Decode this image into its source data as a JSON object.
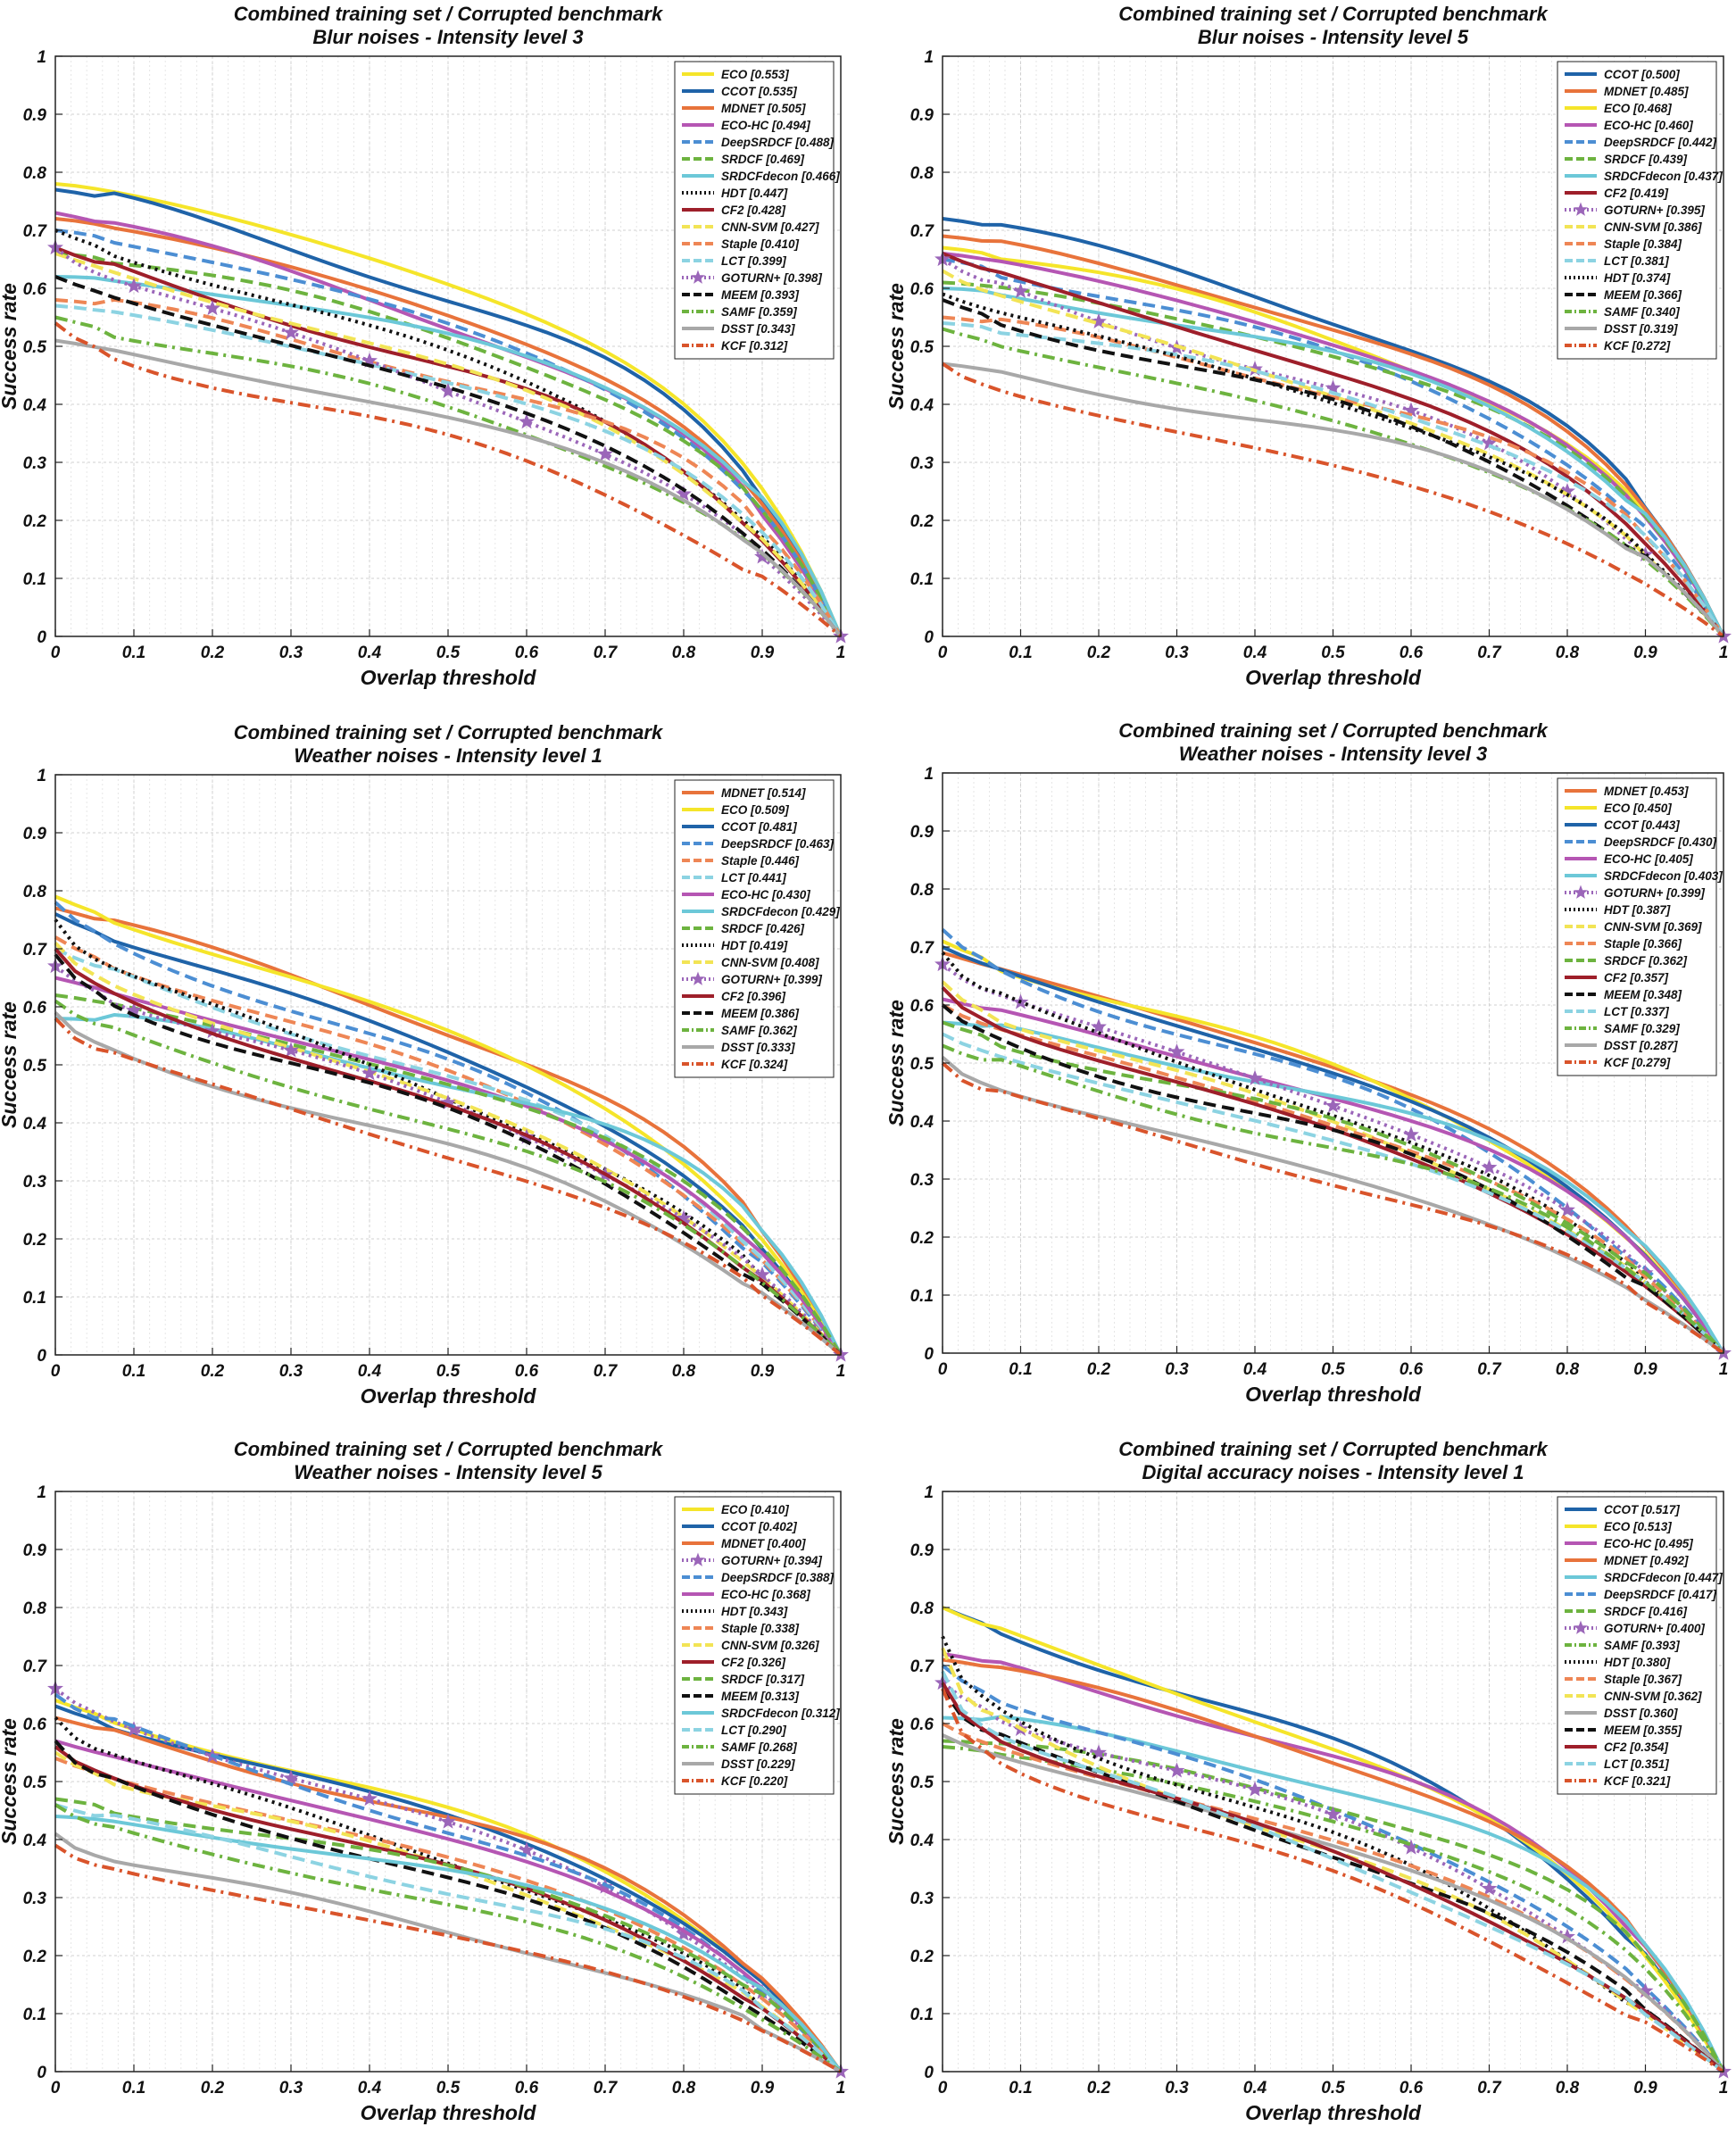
{
  "chart_data": [
    {
      "type": "line",
      "title": "Combined training set / Corrupted benchmark",
      "subtitle": "Blur noises - Intensity level 3",
      "xlabel": "Overlap threshold",
      "ylabel": "Success rate",
      "xlim": [
        0,
        1
      ],
      "ylim": [
        0,
        1
      ],
      "xticks": [
        "0",
        "0.1",
        "0.2",
        "0.3",
        "0.4",
        "0.5",
        "0.6",
        "0.7",
        "0.8",
        "0.9",
        "1"
      ],
      "yticks": [
        "0",
        "0.1",
        "0.2",
        "0.3",
        "0.4",
        "0.5",
        "0.6",
        "0.7",
        "0.8",
        "0.9",
        "1"
      ],
      "grid": true,
      "legend_position": "top-right",
      "series": [
        {
          "name": "ECO [0.553]",
          "auc": 0.553,
          "y0": 0.78
        },
        {
          "name": "CCOT [0.535]",
          "auc": 0.535,
          "y0": 0.77
        },
        {
          "name": "MDNET [0.505]",
          "auc": 0.505,
          "y0": 0.72
        },
        {
          "name": "ECO-HC [0.494]",
          "auc": 0.494,
          "y0": 0.73
        },
        {
          "name": "DeepSRDCF [0.488]",
          "auc": 0.488,
          "y0": 0.7
        },
        {
          "name": "SRDCF [0.469]",
          "auc": 0.469,
          "y0": 0.66
        },
        {
          "name": "SRDCFdecon [0.466]",
          "auc": 0.466,
          "y0": 0.62
        },
        {
          "name": "HDT [0.447]",
          "auc": 0.447,
          "y0": 0.7
        },
        {
          "name": "CF2 [0.428]",
          "auc": 0.428,
          "y0": 0.67
        },
        {
          "name": "CNN-SVM [0.427]",
          "auc": 0.427,
          "y0": 0.66
        },
        {
          "name": "Staple [0.410]",
          "auc": 0.41,
          "y0": 0.58
        },
        {
          "name": "LCT [0.399]",
          "auc": 0.399,
          "y0": 0.57
        },
        {
          "name": "GOTURN+ [0.398]",
          "auc": 0.398,
          "y0": 0.67
        },
        {
          "name": "MEEM [0.393]",
          "auc": 0.393,
          "y0": 0.62
        },
        {
          "name": "SAMF [0.359]",
          "auc": 0.359,
          "y0": 0.55
        },
        {
          "name": "DSST [0.343]",
          "auc": 0.343,
          "y0": 0.51
        },
        {
          "name": "KCF [0.312]",
          "auc": 0.312,
          "y0": 0.54
        }
      ]
    },
    {
      "type": "line",
      "title": "Combined training set / Corrupted benchmark",
      "subtitle": "Blur noises - Intensity level 5",
      "xlabel": "Overlap threshold",
      "ylabel": "Success rate",
      "xlim": [
        0,
        1
      ],
      "ylim": [
        0,
        1
      ],
      "xticks": [
        "0",
        "0.1",
        "0.2",
        "0.3",
        "0.4",
        "0.5",
        "0.6",
        "0.7",
        "0.8",
        "0.9",
        "1"
      ],
      "yticks": [
        "0",
        "0.1",
        "0.2",
        "0.3",
        "0.4",
        "0.5",
        "0.6",
        "0.7",
        "0.8",
        "0.9",
        "1"
      ],
      "grid": true,
      "legend_position": "top-right",
      "series": [
        {
          "name": "CCOT [0.500]",
          "auc": 0.5,
          "y0": 0.72
        },
        {
          "name": "MDNET [0.485]",
          "auc": 0.485,
          "y0": 0.69
        },
        {
          "name": "ECO [0.468]",
          "auc": 0.468,
          "y0": 0.67
        },
        {
          "name": "ECO-HC [0.460]",
          "auc": 0.46,
          "y0": 0.66
        },
        {
          "name": "DeepSRDCF [0.442]",
          "auc": 0.442,
          "y0": 0.65
        },
        {
          "name": "SRDCF [0.439]",
          "auc": 0.439,
          "y0": 0.61
        },
        {
          "name": "SRDCFdecon [0.437]",
          "auc": 0.437,
          "y0": 0.6
        },
        {
          "name": "CF2 [0.419]",
          "auc": 0.419,
          "y0": 0.66
        },
        {
          "name": "GOTURN+ [0.395]",
          "auc": 0.395,
          "y0": 0.65
        },
        {
          "name": "CNN-SVM [0.386]",
          "auc": 0.386,
          "y0": 0.63
        },
        {
          "name": "Staple [0.384]",
          "auc": 0.384,
          "y0": 0.55
        },
        {
          "name": "LCT [0.381]",
          "auc": 0.381,
          "y0": 0.54
        },
        {
          "name": "HDT [0.374]",
          "auc": 0.374,
          "y0": 0.59
        },
        {
          "name": "MEEM [0.366]",
          "auc": 0.366,
          "y0": 0.58
        },
        {
          "name": "SAMF [0.340]",
          "auc": 0.34,
          "y0": 0.53
        },
        {
          "name": "DSST [0.319]",
          "auc": 0.319,
          "y0": 0.47
        },
        {
          "name": "KCF [0.272]",
          "auc": 0.272,
          "y0": 0.47
        }
      ]
    },
    {
      "type": "line",
      "title": "Combined training set / Corrupted benchmark",
      "subtitle": "Weather noises - Intensity level 1",
      "xlabel": "Overlap threshold",
      "ylabel": "Success rate",
      "xlim": [
        0,
        1
      ],
      "ylim": [
        0,
        1
      ],
      "xticks": [
        "0",
        "0.1",
        "0.2",
        "0.3",
        "0.4",
        "0.5",
        "0.6",
        "0.7",
        "0.8",
        "0.9",
        "1"
      ],
      "yticks": [
        "0",
        "0.1",
        "0.2",
        "0.3",
        "0.4",
        "0.5",
        "0.6",
        "0.7",
        "0.8",
        "0.9",
        "1"
      ],
      "grid": true,
      "legend_position": "top-right",
      "series": [
        {
          "name": "MDNET [0.514]",
          "auc": 0.514,
          "y0": 0.77
        },
        {
          "name": "ECO [0.509]",
          "auc": 0.509,
          "y0": 0.79
        },
        {
          "name": "CCOT [0.481]",
          "auc": 0.481,
          "y0": 0.76
        },
        {
          "name": "DeepSRDCF [0.463]",
          "auc": 0.463,
          "y0": 0.78
        },
        {
          "name": "Staple [0.446]",
          "auc": 0.446,
          "y0": 0.72
        },
        {
          "name": "LCT [0.441]",
          "auc": 0.441,
          "y0": 0.7
        },
        {
          "name": "ECO-HC [0.430]",
          "auc": 0.43,
          "y0": 0.65
        },
        {
          "name": "SRDCFdecon [0.429]",
          "auc": 0.429,
          "y0": 0.58
        },
        {
          "name": "SRDCF [0.426]",
          "auc": 0.426,
          "y0": 0.62
        },
        {
          "name": "HDT [0.419]",
          "auc": 0.419,
          "y0": 0.75
        },
        {
          "name": "CNN-SVM [0.408]",
          "auc": 0.408,
          "y0": 0.71
        },
        {
          "name": "GOTURN+ [0.399]",
          "auc": 0.399,
          "y0": 0.67
        },
        {
          "name": "CF2 [0.396]",
          "auc": 0.396,
          "y0": 0.7
        },
        {
          "name": "MEEM [0.386]",
          "auc": 0.386,
          "y0": 0.69
        },
        {
          "name": "SAMF [0.362]",
          "auc": 0.362,
          "y0": 0.61
        },
        {
          "name": "DSST [0.333]",
          "auc": 0.333,
          "y0": 0.59
        },
        {
          "name": "KCF [0.324]",
          "auc": 0.324,
          "y0": 0.58
        }
      ]
    },
    {
      "type": "line",
      "title": "Combined training set / Corrupted benchmark",
      "subtitle": "Weather noises - Intensity level 3",
      "xlabel": "Overlap threshold",
      "ylabel": "Success rate",
      "xlim": [
        0,
        1
      ],
      "ylim": [
        0,
        1
      ],
      "xticks": [
        "0",
        "0.1",
        "0.2",
        "0.3",
        "0.4",
        "0.5",
        "0.6",
        "0.7",
        "0.8",
        "0.9",
        "1"
      ],
      "yticks": [
        "0",
        "0.1",
        "0.2",
        "0.3",
        "0.4",
        "0.5",
        "0.6",
        "0.7",
        "0.8",
        "0.9",
        "1"
      ],
      "grid": true,
      "legend_position": "top-right",
      "series": [
        {
          "name": "MDNET [0.453]",
          "auc": 0.453,
          "y0": 0.69
        },
        {
          "name": "ECO [0.450]",
          "auc": 0.45,
          "y0": 0.71
        },
        {
          "name": "CCOT [0.443]",
          "auc": 0.443,
          "y0": 0.7
        },
        {
          "name": "DeepSRDCF [0.430]",
          "auc": 0.43,
          "y0": 0.73
        },
        {
          "name": "ECO-HC [0.405]",
          "auc": 0.405,
          "y0": 0.61
        },
        {
          "name": "SRDCFdecon [0.403]",
          "auc": 0.403,
          "y0": 0.57
        },
        {
          "name": "GOTURN+ [0.399]",
          "auc": 0.399,
          "y0": 0.67
        },
        {
          "name": "HDT [0.387]",
          "auc": 0.387,
          "y0": 0.69
        },
        {
          "name": "CNN-SVM [0.369]",
          "auc": 0.369,
          "y0": 0.64
        },
        {
          "name": "Staple [0.366]",
          "auc": 0.366,
          "y0": 0.6
        },
        {
          "name": "SRDCF [0.362]",
          "auc": 0.362,
          "y0": 0.57
        },
        {
          "name": "CF2 [0.357]",
          "auc": 0.357,
          "y0": 0.63
        },
        {
          "name": "MEEM [0.348]",
          "auc": 0.348,
          "y0": 0.6
        },
        {
          "name": "LCT [0.337]",
          "auc": 0.337,
          "y0": 0.55
        },
        {
          "name": "SAMF [0.329]",
          "auc": 0.329,
          "y0": 0.53
        },
        {
          "name": "DSST [0.287]",
          "auc": 0.287,
          "y0": 0.51
        },
        {
          "name": "KCF [0.279]",
          "auc": 0.279,
          "y0": 0.5
        }
      ]
    },
    {
      "type": "line",
      "title": "Combined training set / Corrupted benchmark",
      "subtitle": "Weather noises - Intensity level 5",
      "xlabel": "Overlap threshold",
      "ylabel": "Success rate",
      "xlim": [
        0,
        1
      ],
      "ylim": [
        0,
        1
      ],
      "xticks": [
        "0",
        "0.1",
        "0.2",
        "0.3",
        "0.4",
        "0.5",
        "0.6",
        "0.7",
        "0.8",
        "0.9",
        "1"
      ],
      "yticks": [
        "0",
        "0.1",
        "0.2",
        "0.3",
        "0.4",
        "0.5",
        "0.6",
        "0.7",
        "0.8",
        "0.9",
        "1"
      ],
      "grid": true,
      "legend_position": "top-right",
      "series": [
        {
          "name": "ECO [0.410]",
          "auc": 0.41,
          "y0": 0.64
        },
        {
          "name": "CCOT [0.402]",
          "auc": 0.402,
          "y0": 0.63
        },
        {
          "name": "MDNET [0.400]",
          "auc": 0.4,
          "y0": 0.61
        },
        {
          "name": "GOTURN+ [0.394]",
          "auc": 0.394,
          "y0": 0.66
        },
        {
          "name": "DeepSRDCF [0.388]",
          "auc": 0.388,
          "y0": 0.65
        },
        {
          "name": "ECO-HC [0.368]",
          "auc": 0.368,
          "y0": 0.57
        },
        {
          "name": "HDT [0.343]",
          "auc": 0.343,
          "y0": 0.61
        },
        {
          "name": "Staple [0.338]",
          "auc": 0.338,
          "y0": 0.54
        },
        {
          "name": "CNN-SVM [0.326]",
          "auc": 0.326,
          "y0": 0.55
        },
        {
          "name": "CF2 [0.326]",
          "auc": 0.326,
          "y0": 0.56
        },
        {
          "name": "SRDCF [0.317]",
          "auc": 0.317,
          "y0": 0.47
        },
        {
          "name": "MEEM [0.313]",
          "auc": 0.313,
          "y0": 0.57
        },
        {
          "name": "SRDCFdecon [0.312]",
          "auc": 0.312,
          "y0": 0.44
        },
        {
          "name": "LCT [0.290]",
          "auc": 0.29,
          "y0": 0.46
        },
        {
          "name": "SAMF [0.268]",
          "auc": 0.268,
          "y0": 0.46
        },
        {
          "name": "DSST [0.229]",
          "auc": 0.229,
          "y0": 0.41
        },
        {
          "name": "KCF [0.220]",
          "auc": 0.22,
          "y0": 0.39
        }
      ]
    },
    {
      "type": "line",
      "title": "Combined training set / Corrupted benchmark",
      "subtitle": "Digital accuracy noises - Intensity level 1",
      "xlabel": "Overlap threshold",
      "ylabel": "Success rate",
      "xlim": [
        0,
        1
      ],
      "ylim": [
        0,
        1
      ],
      "xticks": [
        "0",
        "0.1",
        "0.2",
        "0.3",
        "0.4",
        "0.5",
        "0.6",
        "0.7",
        "0.8",
        "0.9",
        "1"
      ],
      "yticks": [
        "0",
        "0.1",
        "0.2",
        "0.3",
        "0.4",
        "0.5",
        "0.6",
        "0.7",
        "0.8",
        "0.9",
        "1"
      ],
      "grid": true,
      "legend_position": "top-right",
      "series": [
        {
          "name": "CCOT [0.517]",
          "auc": 0.517,
          "y0": 0.8
        },
        {
          "name": "ECO [0.513]",
          "auc": 0.513,
          "y0": 0.8
        },
        {
          "name": "ECO-HC [0.495]",
          "auc": 0.495,
          "y0": 0.72
        },
        {
          "name": "MDNET [0.492]",
          "auc": 0.492,
          "y0": 0.71
        },
        {
          "name": "SRDCFdecon [0.447]",
          "auc": 0.447,
          "y0": 0.61
        },
        {
          "name": "DeepSRDCF [0.417]",
          "auc": 0.417,
          "y0": 0.7
        },
        {
          "name": "SRDCF [0.416]",
          "auc": 0.416,
          "y0": 0.57
        },
        {
          "name": "GOTURN+ [0.400]",
          "auc": 0.4,
          "y0": 0.67
        },
        {
          "name": "SAMF [0.393]",
          "auc": 0.393,
          "y0": 0.56
        },
        {
          "name": "HDT [0.380]",
          "auc": 0.38,
          "y0": 0.75
        },
        {
          "name": "Staple [0.367]",
          "auc": 0.367,
          "y0": 0.6
        },
        {
          "name": "CNN-SVM [0.362]",
          "auc": 0.362,
          "y0": 0.73
        },
        {
          "name": "DSST [0.360]",
          "auc": 0.36,
          "y0": 0.58
        },
        {
          "name": "MEEM [0.355]",
          "auc": 0.355,
          "y0": 0.66
        },
        {
          "name": "CF2 [0.354]",
          "auc": 0.354,
          "y0": 0.67
        },
        {
          "name": "LCT [0.351]",
          "auc": 0.351,
          "y0": 0.69
        },
        {
          "name": "KCF [0.321]",
          "auc": 0.321,
          "y0": 0.66
        }
      ]
    }
  ],
  "styles": {
    "ECO": {
      "color": "#F5E52A",
      "dash": "solid"
    },
    "CCOT": {
      "color": "#1F63A8",
      "dash": "solid"
    },
    "MDNET": {
      "color": "#E8733B",
      "dash": "solid"
    },
    "ECO-HC": {
      "color": "#B556B3",
      "dash": "solid"
    },
    "DeepSRDCF": {
      "color": "#4C8ED3",
      "dash": "dashed"
    },
    "SRDCF": {
      "color": "#6DB33F",
      "dash": "dashed"
    },
    "SRDCFdecon": {
      "color": "#6CC8D8",
      "dash": "solid"
    },
    "HDT": {
      "color": "#111111",
      "dash": "dotted"
    },
    "CF2": {
      "color": "#9E1F2A",
      "dash": "solid"
    },
    "CNN-SVM": {
      "color": "#F2E455",
      "dash": "dashed"
    },
    "Staple": {
      "color": "#EE8655",
      "dash": "dashed"
    },
    "LCT": {
      "color": "#8CD3E2",
      "dash": "dashed"
    },
    "GOTURN+": {
      "color": "#9B66B9",
      "dash": "dotted-star"
    },
    "MEEM": {
      "color": "#111111",
      "dash": "dashed"
    },
    "SAMF": {
      "color": "#6DB33F",
      "dash": "dashdot"
    },
    "DSST": {
      "color": "#A8A8A8",
      "dash": "solid"
    },
    "KCF": {
      "color": "#D9542B",
      "dash": "dashdot"
    }
  }
}
